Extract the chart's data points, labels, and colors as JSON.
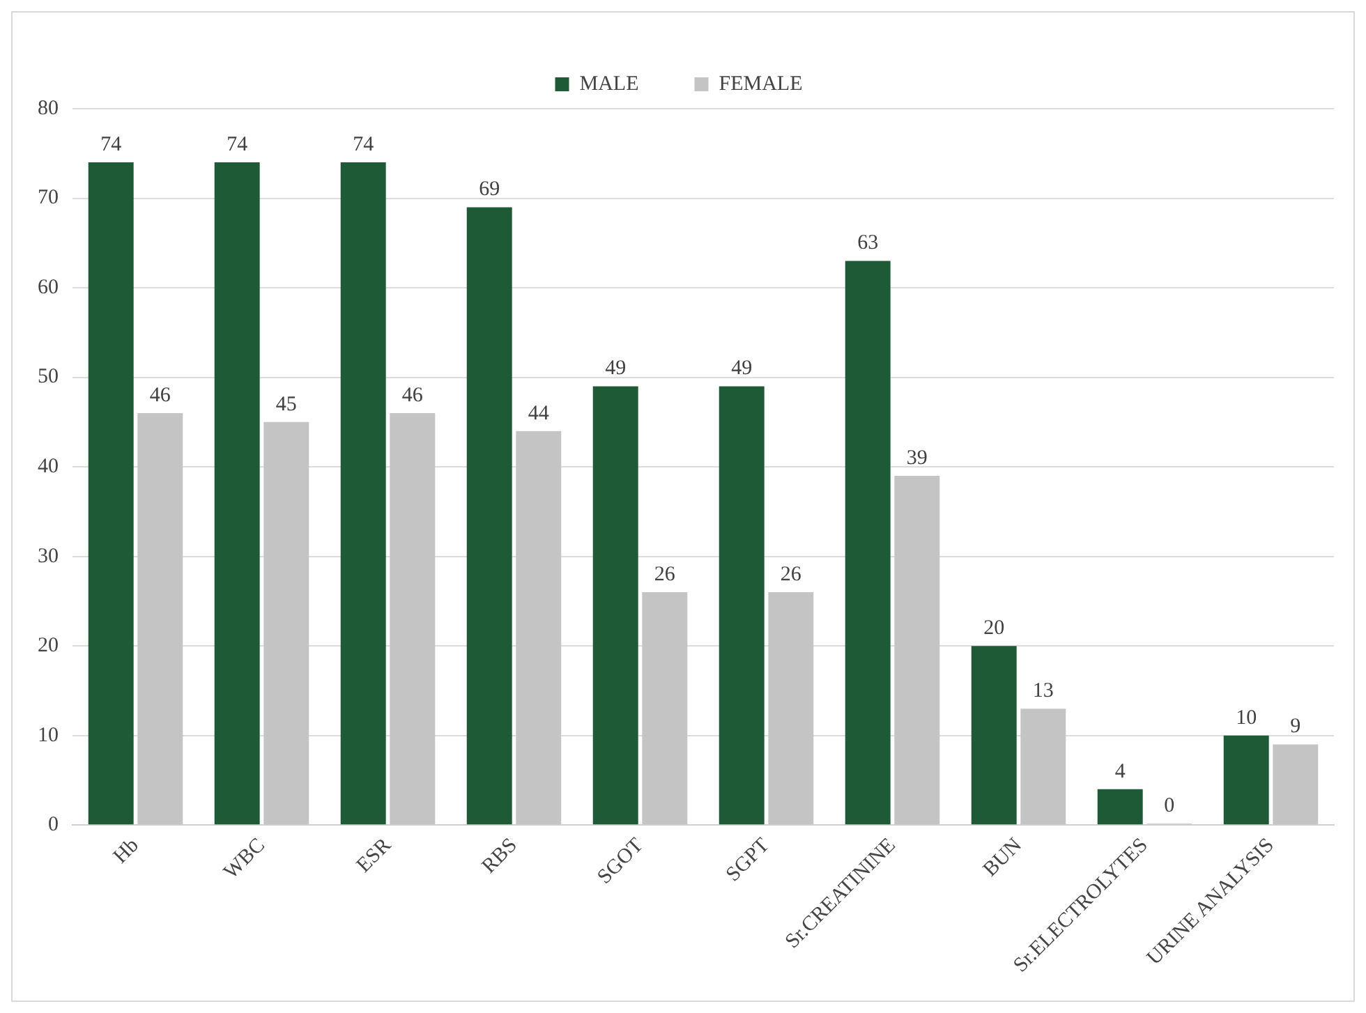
{
  "chart_data": {
    "type": "bar",
    "categories": [
      "Hb",
      "WBC",
      "ESR",
      "RBS",
      "SGOT",
      "SGPT",
      "Sr.CREATININE",
      "BUN",
      "Sr.ELECTROLYTES",
      "URINE ANALYSIS"
    ],
    "series": [
      {
        "name": "MALE",
        "color": "#1f5a36",
        "values": [
          74,
          74,
          74,
          69,
          49,
          49,
          63,
          20,
          4,
          10
        ]
      },
      {
        "name": "FEMALE",
        "color": "#c4c4c4",
        "values": [
          46,
          45,
          46,
          44,
          26,
          26,
          39,
          13,
          0,
          9
        ]
      }
    ],
    "ylim": [
      0,
      80
    ],
    "yticks": [
      0,
      10,
      20,
      30,
      40,
      50,
      60,
      70,
      80
    ],
    "grid": "y",
    "legend": "top",
    "data_labels": true
  }
}
